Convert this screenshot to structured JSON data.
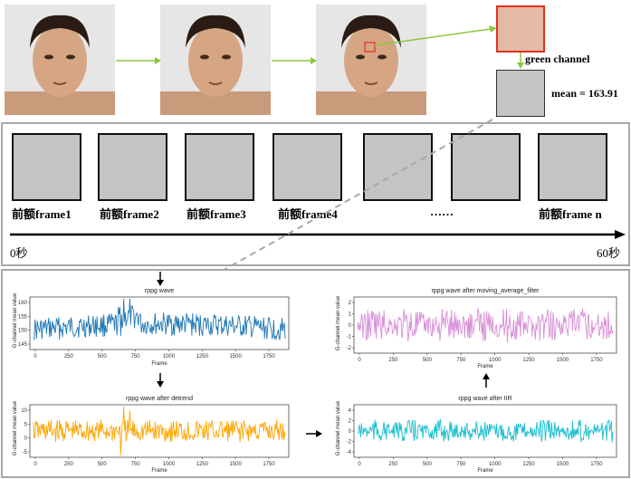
{
  "top": {
    "green_label": "green channel",
    "mean_label": "mean = 163.91",
    "colors": {
      "roi": "#e0301e",
      "arrow": "#8dc63f"
    }
  },
  "frames": {
    "labels": [
      "前额frame1",
      "前额frame2",
      "前额frame3",
      "前额frame4",
      "……",
      "前额frame n"
    ],
    "time_start": "0秒",
    "time_end": "60秒"
  },
  "plots": [
    {
      "title": "rppg wave",
      "xlabel": "Frame",
      "ylabel": "G-channel mean value",
      "color": "#1f77b4",
      "xticks": [
        "0",
        "250",
        "500",
        "750",
        "1000",
        "1250",
        "1500",
        "1750"
      ],
      "yticks": [
        "145",
        "150",
        "155",
        "160"
      ]
    },
    {
      "title": "rppg wave after detrend",
      "xlabel": "Frame",
      "ylabel": "G-channel mean value",
      "color": "#ffa500",
      "xticks": [
        "0",
        "250",
        "500",
        "750",
        "1000",
        "1250",
        "1500",
        "1750"
      ],
      "yticks": [
        "-5",
        "0",
        "5",
        "10"
      ]
    },
    {
      "title": "rppg wave after moving_average_filter",
      "xlabel": "Frame",
      "ylabel": "G-channel mean value",
      "color": "#d88fd8",
      "xticks": [
        "0",
        "250",
        "500",
        "750",
        "1000",
        "1250",
        "1500",
        "1750"
      ],
      "yticks": [
        "-2",
        "-1",
        "0",
        "1",
        "2"
      ]
    },
    {
      "title": "rppg wave after IIR",
      "xlabel": "Frame",
      "ylabel": "G-channel mean value",
      "color": "#17becf",
      "xticks": [
        "0",
        "250",
        "500",
        "750",
        "1000",
        "1250",
        "1500",
        "1750"
      ],
      "yticks": [
        "-4",
        "-2",
        "0",
        "2",
        "4"
      ]
    }
  ]
}
